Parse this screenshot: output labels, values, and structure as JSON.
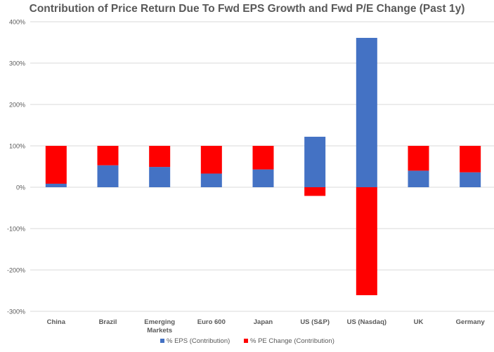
{
  "chart_data": {
    "type": "bar",
    "stacked": true,
    "title": "Contribution of Price Return Due To Fwd EPS Growth and Fwd P/E Change (Past 1y)",
    "xlabel": "",
    "ylabel": "",
    "ylim": [
      -300,
      400
    ],
    "yticks": [
      400,
      300,
      200,
      100,
      0,
      -100,
      -200,
      -300
    ],
    "ytick_labels": [
      "400%",
      "300%",
      "200%",
      "100%",
      "0%",
      "-100%",
      "-200%",
      "-300%"
    ],
    "grid": true,
    "legend_position": "bottom",
    "categories": [
      "China",
      "Brazil",
      "Emerging Markets",
      "Euro 600",
      "Japan",
      "US (S&P)",
      "US (Nasdaq)",
      "UK",
      "Germany"
    ],
    "series": [
      {
        "name": "% EPS (Contribution)",
        "color": "#4472C4",
        "values": [
          8.5,
          53,
          49,
          33,
          43,
          122,
          361,
          40,
          36
        ]
      },
      {
        "name": "% PE Change (Contribution)",
        "color": "#FF0000",
        "values": [
          91.5,
          47,
          51,
          67,
          57,
          -21,
          -261,
          60,
          64
        ]
      }
    ]
  }
}
